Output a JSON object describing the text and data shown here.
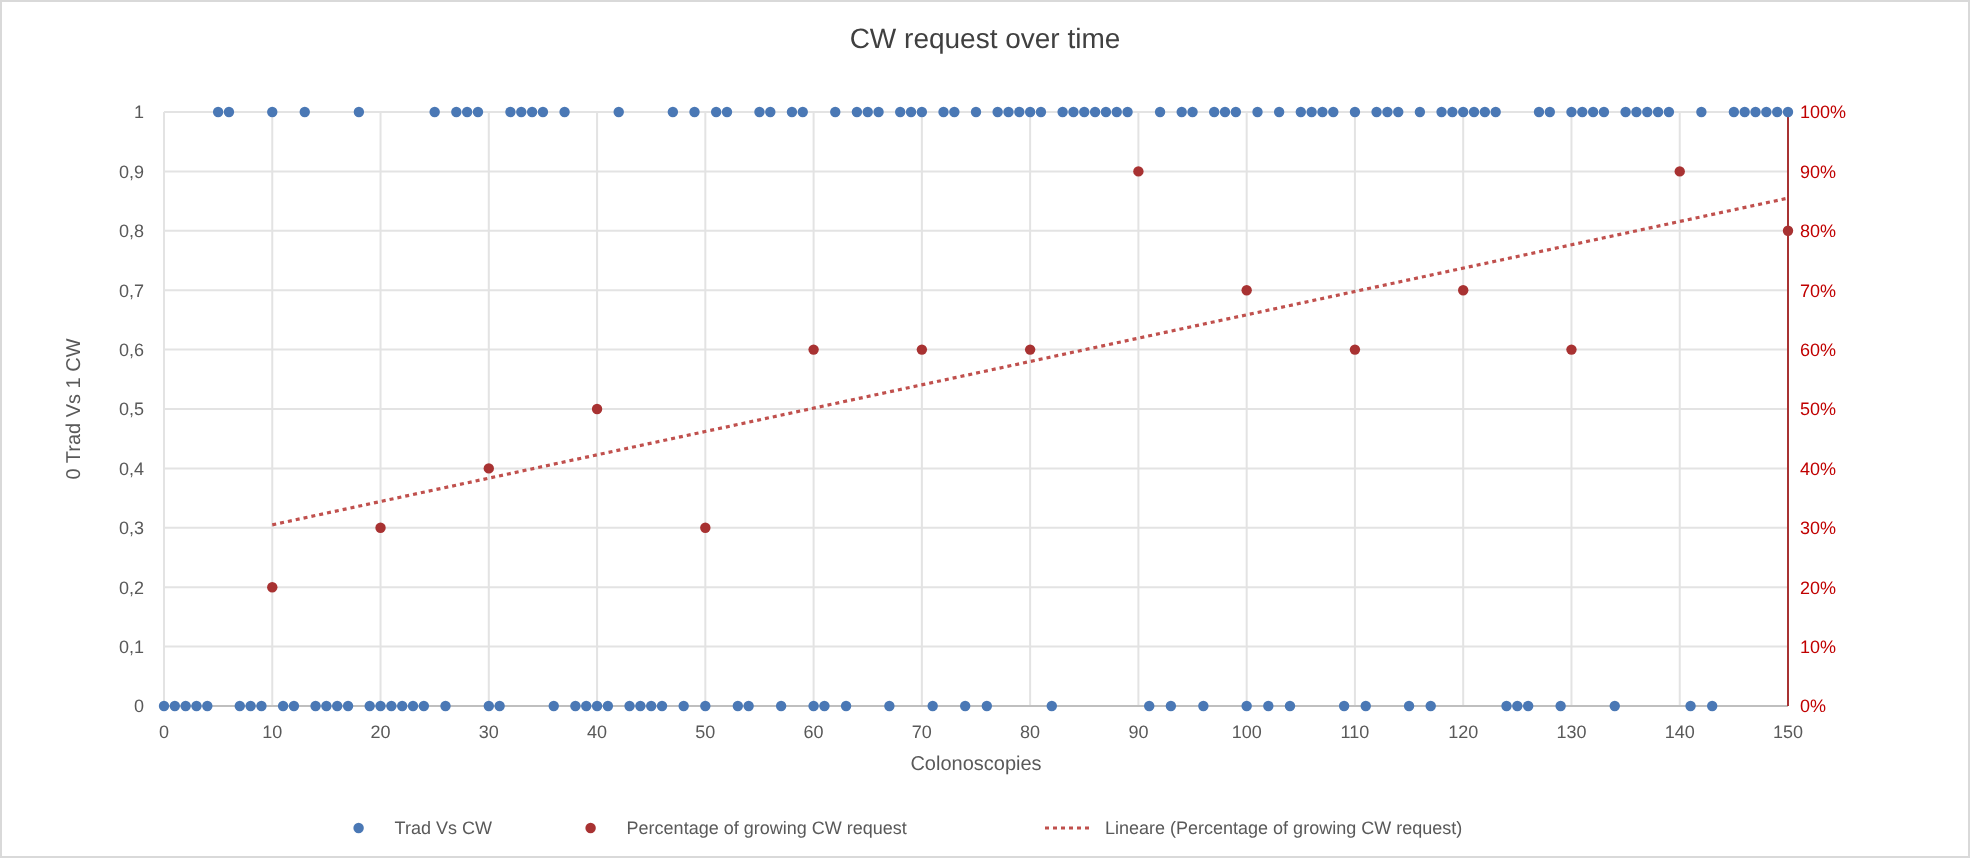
{
  "chart_data": {
    "type": "scatter",
    "title": "CW request over time",
    "xlabel": "Colonoscopies",
    "ylabel": "0 Trad Vs 1 CW",
    "xlim": [
      0,
      150
    ],
    "xticks": [
      0,
      10,
      20,
      30,
      40,
      50,
      60,
      70,
      80,
      90,
      100,
      110,
      120,
      130,
      140,
      150
    ],
    "ylim": [
      0,
      1
    ],
    "yticks": [
      0,
      {
        "value": 0.1,
        "label": "0,1"
      },
      {
        "value": 0.2,
        "label": "0,2"
      },
      {
        "value": 0.3,
        "label": "0,3"
      },
      {
        "value": 0.4,
        "label": "0,4"
      },
      {
        "value": 0.5,
        "label": "0,5"
      },
      {
        "value": 0.6,
        "label": "0,6"
      },
      {
        "value": 0.7,
        "label": "0,7"
      },
      {
        "value": 0.8,
        "label": "0,8"
      },
      {
        "value": 0.9,
        "label": "0,9"
      },
      1
    ],
    "y2lim": [
      0,
      100
    ],
    "y2ticks": [
      {
        "value": 0,
        "label": "0%"
      },
      {
        "value": 10,
        "label": "10%"
      },
      {
        "value": 20,
        "label": "20%"
      },
      {
        "value": 30,
        "label": "30%"
      },
      {
        "value": 40,
        "label": "40%"
      },
      {
        "value": 50,
        "label": "50%"
      },
      {
        "value": 60,
        "label": "60%"
      },
      {
        "value": 70,
        "label": "70%"
      },
      {
        "value": 80,
        "label": "80%"
      },
      {
        "value": 90,
        "label": "90%"
      },
      {
        "value": 100,
        "label": "100%"
      }
    ],
    "grid": true,
    "legend": "bottom",
    "marker": "circle",
    "series": [
      {
        "name": "Trad Vs CW",
        "color": "#4a78b5",
        "x": [
          0,
          1,
          2,
          3,
          4,
          5,
          6,
          7,
          8,
          9,
          10,
          11,
          12,
          13,
          14,
          15,
          16,
          17,
          18,
          19,
          20,
          21,
          22,
          23,
          24,
          25,
          26,
          27,
          28,
          29,
          30,
          31,
          32,
          33,
          34,
          35,
          36,
          37,
          38,
          39,
          40,
          41,
          42,
          43,
          44,
          45,
          46,
          47,
          48,
          49,
          50,
          51,
          52,
          53,
          54,
          55,
          56,
          57,
          58,
          59,
          60,
          61,
          62,
          63,
          64,
          65,
          66,
          67,
          68,
          69,
          70,
          71,
          72,
          73,
          74,
          75,
          76,
          77,
          78,
          79,
          80,
          81,
          82,
          83,
          84,
          85,
          86,
          87,
          88,
          89,
          91,
          92,
          93,
          94,
          95,
          96,
          97,
          98,
          99,
          100,
          101,
          102,
          103,
          104,
          105,
          106,
          107,
          108,
          109,
          110,
          111,
          112,
          113,
          114,
          115,
          116,
          117,
          118,
          119,
          120,
          121,
          122,
          123,
          124,
          125,
          126,
          127,
          128,
          129,
          130,
          131,
          132,
          133,
          134,
          135,
          136,
          137,
          138,
          139,
          141,
          142,
          143,
          145,
          146,
          147,
          148,
          149,
          150
        ],
        "values": [
          0,
          0,
          0,
          0,
          0,
          1,
          1,
          0,
          0,
          0,
          1,
          0,
          0,
          1,
          0,
          0,
          0,
          0,
          1,
          0,
          0,
          0,
          0,
          0,
          0,
          1,
          0,
          1,
          1,
          1,
          0,
          0,
          1,
          1,
          1,
          1,
          0,
          1,
          0,
          0,
          0,
          0,
          1,
          0,
          0,
          0,
          0,
          1,
          0,
          1,
          0,
          1,
          1,
          0,
          0,
          1,
          1,
          0,
          1,
          1,
          0,
          0,
          1,
          0,
          1,
          1,
          1,
          0,
          1,
          1,
          1,
          0,
          1,
          1,
          0,
          1,
          0,
          1,
          1,
          1,
          1,
          1,
          0,
          1,
          1,
          1,
          1,
          1,
          1,
          1,
          0,
          1,
          0,
          1,
          1,
          0,
          1,
          1,
          1,
          0,
          1,
          0,
          1,
          0,
          1,
          1,
          1,
          1,
          0,
          1,
          0,
          1,
          1,
          1,
          0,
          1,
          0,
          1,
          1,
          1,
          1,
          1,
          1,
          0,
          0,
          0,
          1,
          1,
          0,
          1,
          1,
          1,
          1,
          0,
          1,
          1,
          1,
          1,
          1,
          0,
          1,
          0,
          1,
          1,
          1,
          1,
          1,
          1
        ]
      },
      {
        "name": "Percentage of growing CW request",
        "axis": "y2",
        "color": "#a83232",
        "x": [
          10,
          20,
          30,
          40,
          50,
          60,
          70,
          80,
          90,
          100,
          110,
          120,
          130,
          140,
          150
        ],
        "values": [
          20,
          30,
          40,
          50,
          30,
          60,
          60,
          60,
          90,
          70,
          60,
          70,
          60,
          90,
          80
        ]
      },
      {
        "name": "Lineare (Percentage of growing CW request)",
        "type": "line",
        "axis": "y2",
        "color": "#c0504d",
        "marker": "none",
        "line_style": "dotted",
        "x": [
          10,
          150
        ],
        "values": [
          30.5,
          85.5
        ]
      }
    ]
  }
}
